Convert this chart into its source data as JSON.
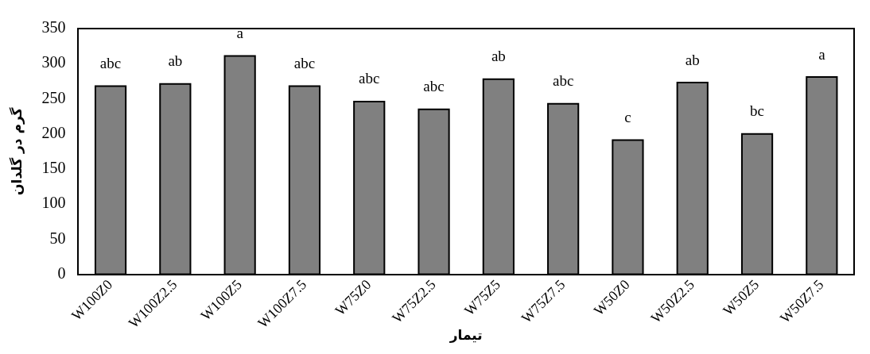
{
  "chart_data": {
    "type": "bar",
    "xlabel": "تیمار",
    "ylabel": "گرم در گلدان",
    "categories": [
      "W100Z0",
      "W100Z2.5",
      "W100Z5",
      "W100Z7.5",
      "W75Z0",
      "W75Z2.5",
      "W75Z5",
      "W75Z7.5",
      "W50Z0",
      "W50Z2.5",
      "W50Z5",
      "W50Z7.5"
    ],
    "values": [
      268,
      271,
      311,
      268,
      246,
      235,
      278,
      243,
      191,
      273,
      200,
      281
    ],
    "value_labels": [
      "abc",
      "ab",
      "a",
      "abc",
      "abc",
      "abc",
      "ab",
      "abc",
      "c",
      "ab",
      "bc",
      "a"
    ],
    "color": "#808080",
    "ylim": [
      0,
      350
    ],
    "yticks": [
      0,
      50,
      100,
      150,
      200,
      250,
      300,
      350
    ],
    "grid": false,
    "legend": false
  }
}
